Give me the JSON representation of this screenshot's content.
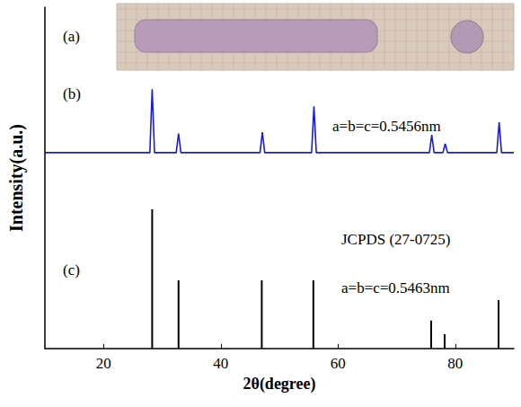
{
  "chart_data": {
    "type": "line",
    "x_label": "2θ(degree)",
    "y_label": "Intensity(a.u.)",
    "xlim": [
      10,
      90
    ],
    "xticks": [
      20,
      40,
      60,
      80
    ],
    "ylim": [
      0,
      100
    ],
    "yticks": [],
    "tick_labels": "x",
    "grid": false,
    "annotations": [
      "(a)",
      "a=b=c=0.5456nm",
      "JCPDS (27-0725)",
      "a=b=c=0.5463nm"
    ],
    "series": [
      {
        "name": "(b)",
        "type": "line",
        "color": "#1a1ae6",
        "line_style": "solid",
        "x": [
          10,
          27.9,
          28.3,
          28.7,
          32.4,
          32.8,
          33.2,
          46.7,
          47.1,
          47.5,
          55.5,
          55.9,
          56.3,
          75.6,
          76.0,
          76.4,
          77.9,
          78.3,
          78.7,
          87.1,
          87.5,
          87.9,
          90
        ],
        "values": [
          57.4,
          57.4,
          76,
          57.4,
          57.4,
          63,
          57.4,
          57.4,
          63.4,
          57.4,
          57.4,
          71,
          57.4,
          57.4,
          62.6,
          57.4,
          57.4,
          60,
          57.4,
          57.4,
          66.3,
          57.4,
          57.4
        ]
      },
      {
        "name": "(c)",
        "type": "bar",
        "color": "#000000",
        "x": [
          28.3,
          32.8,
          47.0,
          55.8,
          75.9,
          78.2,
          87.4
        ],
        "values": [
          40.8,
          20,
          20,
          20,
          8.2,
          4.2,
          14.2
        ]
      }
    ]
  }
}
